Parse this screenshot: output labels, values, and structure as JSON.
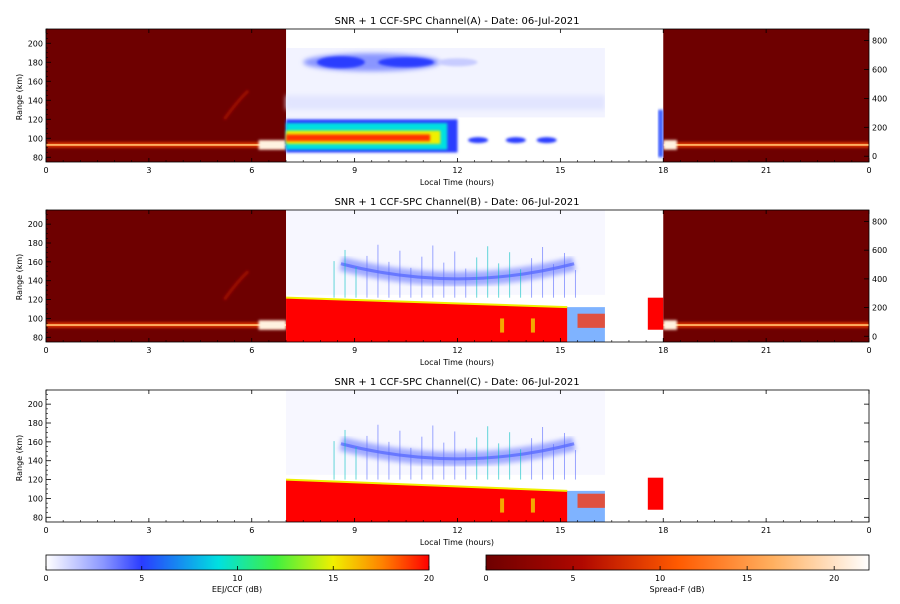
{
  "panels": [
    {
      "title": "SNR + 1 CCF-SPC Channel(A) - Date: 06-Jul-2021",
      "xlabel": "Local Time (hours)",
      "ylabel": "Range (km)",
      "right_axis": true,
      "variant": "A"
    },
    {
      "title": "SNR + 1 CCF-SPC Channel(B) - Date: 06-Jul-2021",
      "xlabel": "Local Time (hours)",
      "ylabel": "Range (km)",
      "right_axis": true,
      "variant": "B"
    },
    {
      "title": "SNR + 1 CCF-SPC Channel(C) - Date: 06-Jul-2021",
      "xlabel": "Local Time (hours)",
      "ylabel": "Range (km)",
      "right_axis": false,
      "variant": "C"
    }
  ],
  "colorbars": [
    {
      "label": "EEJ/CCF (dB)",
      "ticks": [
        "0",
        "5",
        "10",
        "15",
        "20"
      ],
      "colors": [
        "#ffffff",
        "#2a3cff",
        "#00e0e0",
        "#f0f000",
        "#ff0000"
      ]
    },
    {
      "label": "Spread-F (dB)",
      "ticks": [
        "0",
        "5",
        "10",
        "15",
        "20"
      ],
      "colors": [
        "#6e0000",
        "#c01000",
        "#ff7000",
        "#ffd080",
        "#ffffff"
      ]
    }
  ],
  "chart_data": [
    {
      "type": "heatmap",
      "title": "SNR + 1 CCF-SPC Channel(A) - Date: 06-Jul-2021",
      "xlabel": "Local Time (hours)",
      "ylabel": "Range (km)",
      "xlim": [
        0,
        24
      ],
      "ylim": [
        75,
        215
      ],
      "xticks": [
        "0",
        "3",
        "6",
        "9",
        "12",
        "15",
        "18",
        "21",
        "0"
      ],
      "yticks": [
        80,
        100,
        120,
        140,
        160,
        180,
        200
      ],
      "right_yticks": [
        0,
        200,
        400,
        600,
        800
      ],
      "right_ylim": [
        -40,
        880
      ],
      "spreadf_segments": [
        [
          0,
          7.0
        ],
        [
          18.0,
          24
        ]
      ],
      "eej_segment": [
        7.0,
        16.3
      ],
      "features": [
        {
          "t": [
            7.0,
            16.3
          ],
          "range": [
            85,
            118
          ],
          "peak_db": 20
        },
        {
          "t": [
            7.0,
            12.0
          ],
          "range": [
            170,
            190
          ],
          "peak_db": 6
        }
      ]
    },
    {
      "type": "heatmap",
      "title": "SNR + 1 CCF-SPC Channel(B) - Date: 06-Jul-2021",
      "xlabel": "Local Time (hours)",
      "ylabel": "Range (km)",
      "xlim": [
        0,
        24
      ],
      "ylim": [
        75,
        215
      ],
      "xticks": [
        "0",
        "3",
        "6",
        "9",
        "12",
        "15",
        "18",
        "21",
        "0"
      ],
      "yticks": [
        80,
        100,
        120,
        140,
        160,
        180,
        200
      ],
      "right_yticks": [
        0,
        200,
        400,
        600,
        800
      ],
      "right_ylim": [
        -40,
        880
      ],
      "spreadf_segments": [
        [
          0,
          7.0
        ],
        [
          18.0,
          24
        ]
      ],
      "eej_segment": [
        7.0,
        16.3
      ],
      "features": [
        {
          "t": [
            7.0,
            16.3
          ],
          "range": [
            80,
            122
          ],
          "peak_db": 20
        },
        {
          "t": [
            8.5,
            15.5
          ],
          "range": [
            135,
            165
          ],
          "peak_db": 5
        }
      ]
    },
    {
      "type": "heatmap",
      "title": "SNR + 1 CCF-SPC Channel(C) - Date: 06-Jul-2021",
      "xlabel": "Local Time (hours)",
      "ylabel": "Range (km)",
      "xlim": [
        0,
        24
      ],
      "ylim": [
        75,
        215
      ],
      "xticks": [
        "0",
        "3",
        "6",
        "9",
        "12",
        "15",
        "18",
        "21",
        "0"
      ],
      "yticks": [
        80,
        100,
        120,
        140,
        160,
        180,
        200
      ],
      "eej_segment": [
        7.0,
        16.3
      ],
      "features": [
        {
          "t": [
            7.0,
            16.3
          ],
          "range": [
            80,
            120
          ],
          "peak_db": 20
        },
        {
          "t": [
            8.5,
            15.5
          ],
          "range": [
            130,
            160
          ],
          "peak_db": 4
        }
      ]
    }
  ]
}
